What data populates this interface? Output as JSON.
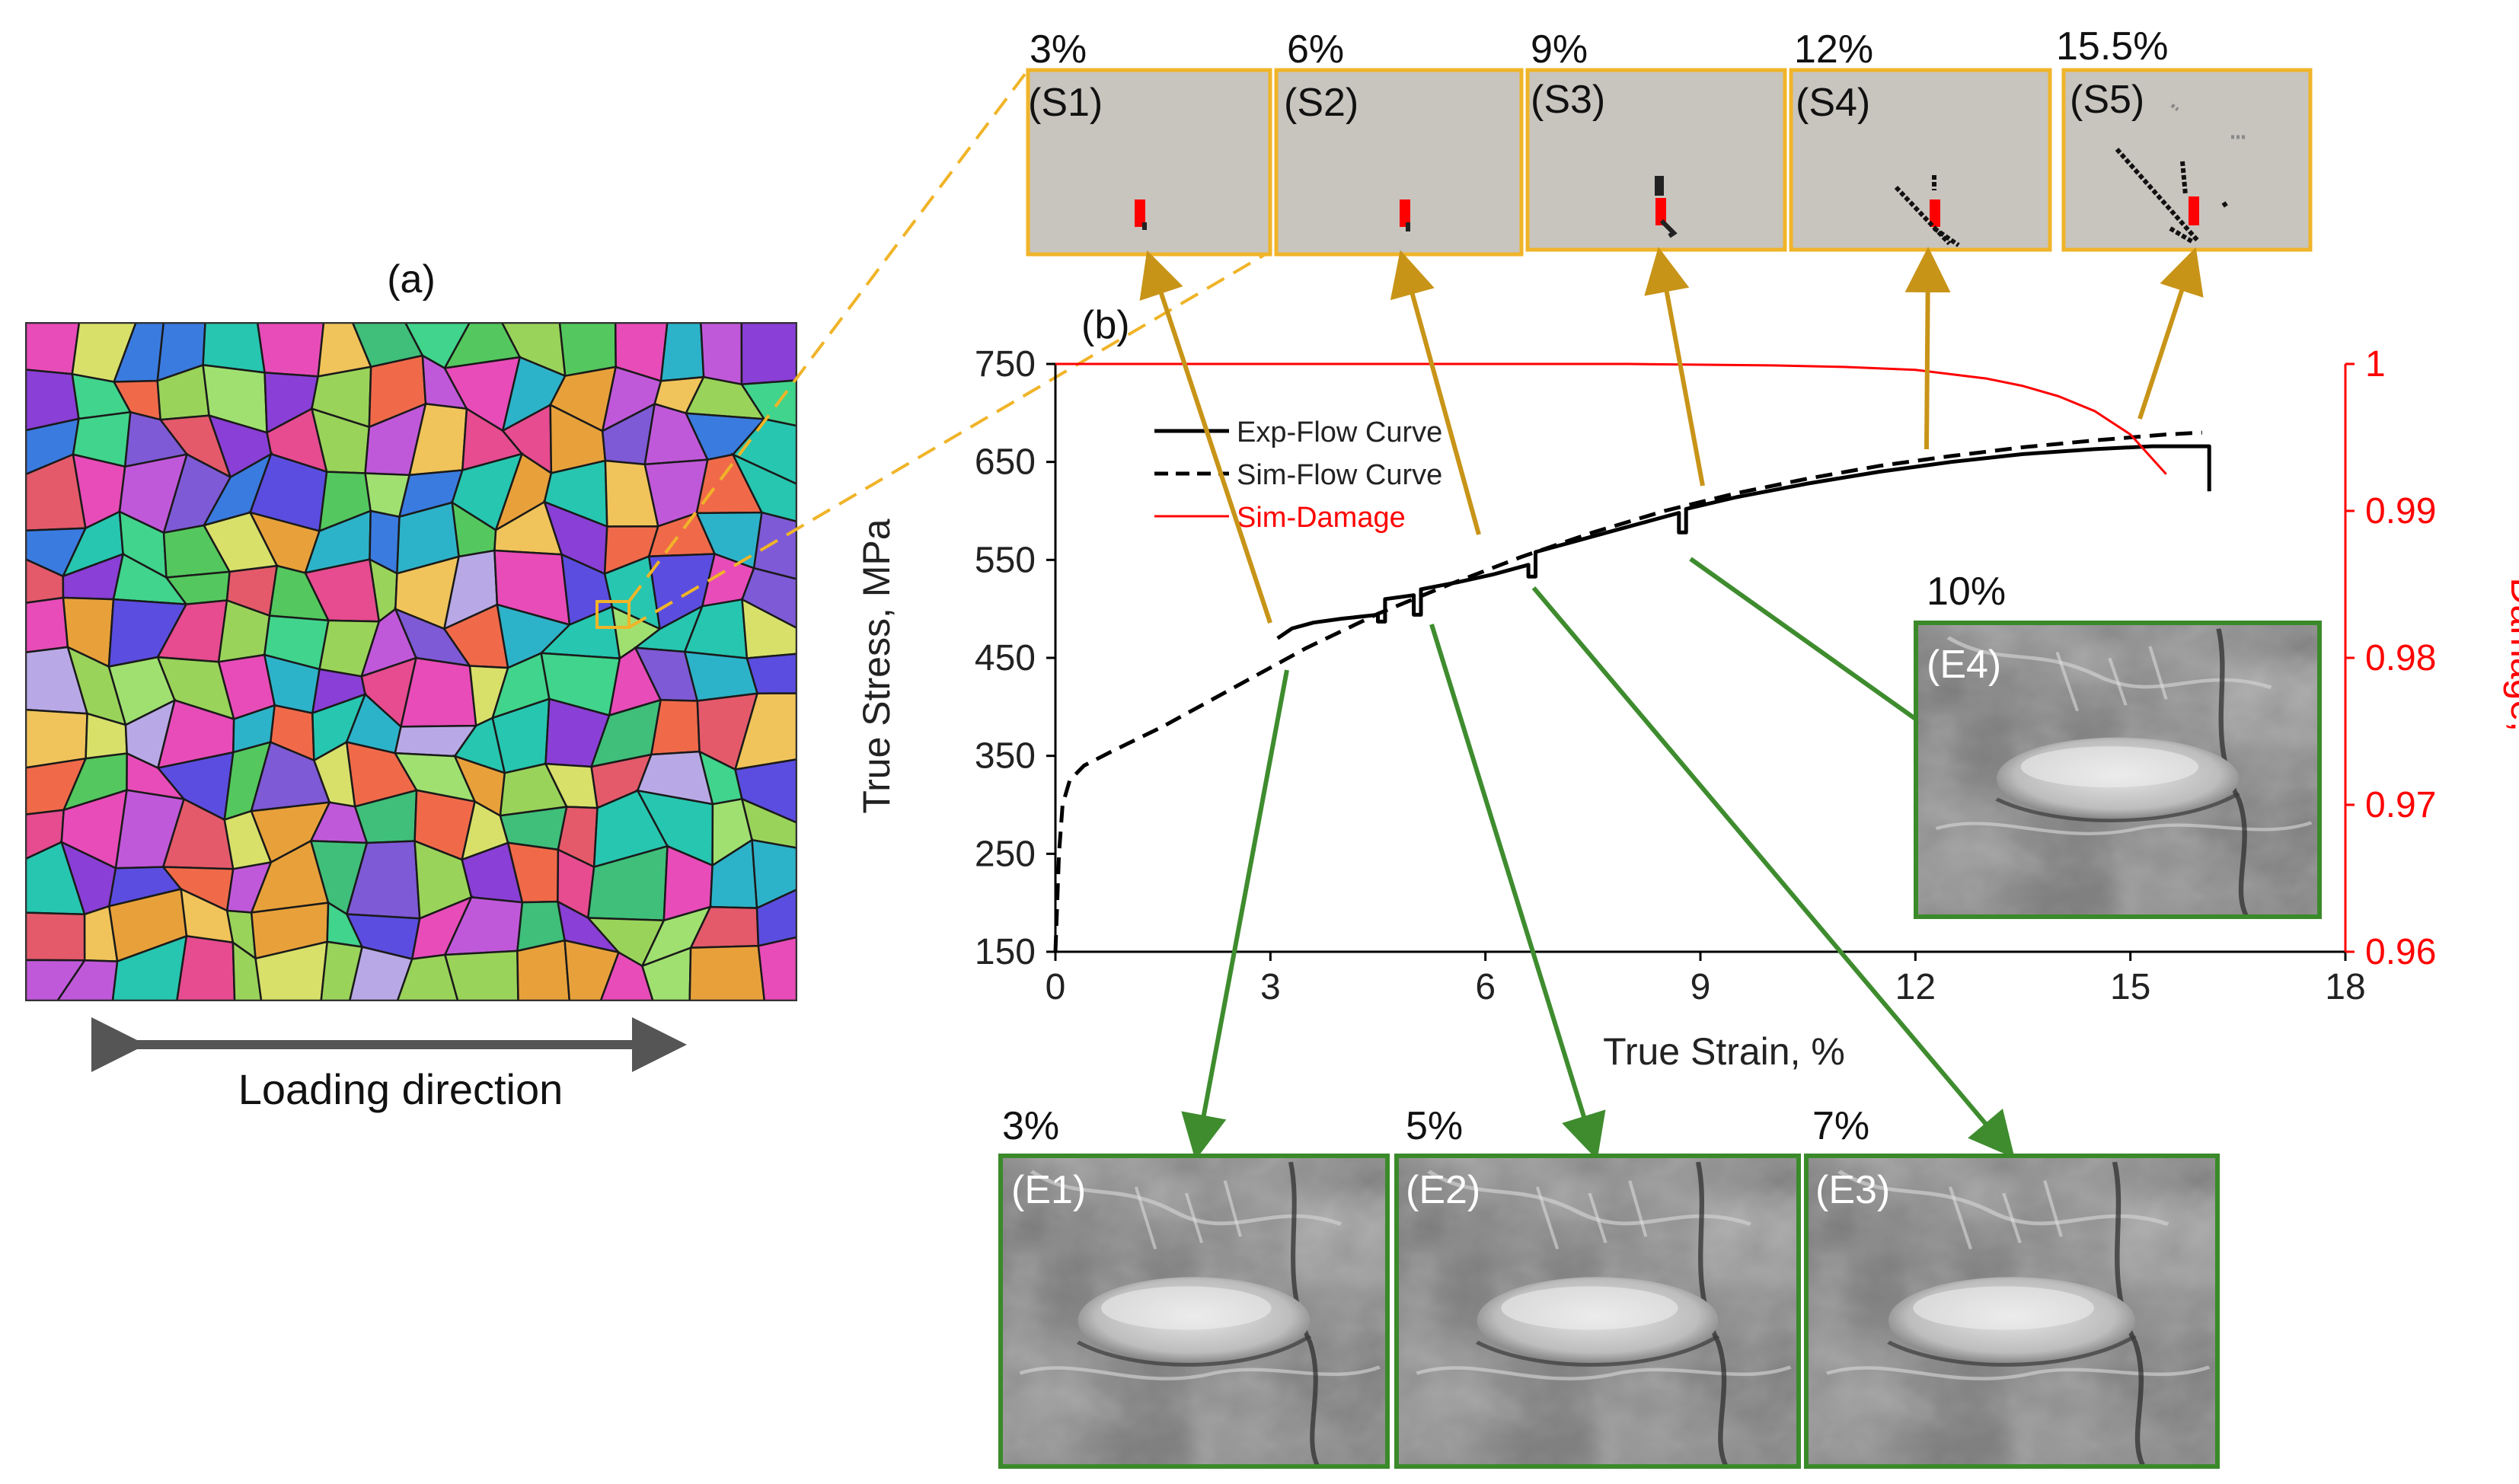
{
  "panel_a": {
    "label": "(a)",
    "caption": "Loading direction"
  },
  "panel_b": {
    "label": "(b)"
  },
  "sim_panels": [
    {
      "strain": "3%",
      "label": "(S1)"
    },
    {
      "strain": "6%",
      "label": "(S2)"
    },
    {
      "strain": "9%",
      "label": "(S3)"
    },
    {
      "strain": "12%",
      "label": "(S4)"
    },
    {
      "strain": "15.5%",
      "label": "(S5)"
    }
  ],
  "exp_panels": [
    {
      "strain": "3%",
      "label": "(E1)"
    },
    {
      "strain": "5%",
      "label": "(E2)"
    },
    {
      "strain": "7%",
      "label": "(E3)"
    },
    {
      "strain": "10%",
      "label": "(E4)"
    }
  ],
  "chart_data": {
    "type": "line",
    "xlabel": "True Strain, %",
    "ylabel": "True Stress, MPa",
    "y2label": "Damage, -",
    "xlim": [
      0,
      18
    ],
    "ylim": [
      150,
      750
    ],
    "y2lim": [
      0.96,
      1
    ],
    "xticks": [
      "0",
      "3",
      "6",
      "9",
      "12",
      "15",
      "18"
    ],
    "yticks": [
      "150",
      "250",
      "350",
      "450",
      "550",
      "650",
      "750"
    ],
    "y2ticks": [
      "0.96",
      "0.97",
      "0.98",
      "0.99",
      "1"
    ],
    "grid": false,
    "legend_position": "top-left",
    "series": [
      {
        "name": "Exp-Flow Curve",
        "axis": "left",
        "style": "solid",
        "color": "#000000",
        "x": [
          3.1,
          3.3,
          3.6,
          4.0,
          4.5,
          4.5,
          4.6,
          4.6,
          5.0,
          5.0,
          5.1,
          5.1,
          5.6,
          6.1,
          6.6,
          6.6,
          6.7,
          6.7,
          7.2,
          7.8,
          8.3,
          8.7,
          8.7,
          8.8,
          8.8,
          9.5,
          10.5,
          11.5,
          12.5,
          13.5,
          14.5,
          15.3,
          16.1,
          16.1
        ],
        "y": [
          470,
          480,
          486,
          490,
          494,
          487,
          487,
          510,
          514,
          494,
          494,
          520,
          527,
          535,
          545,
          533,
          533,
          558,
          568,
          580,
          590,
          598,
          578,
          578,
          602,
          614,
          628,
          640,
          650,
          658,
          663,
          666,
          666,
          620
        ]
      },
      {
        "name": "Sim-Flow Curve",
        "axis": "left",
        "style": "dashed",
        "color": "#000000",
        "x": [
          0,
          0.05,
          0.1,
          0.2,
          0.4,
          0.8,
          1.5,
          2.5,
          3.5,
          4.5,
          5.5,
          6.5,
          7.5,
          8.5,
          9.5,
          10.5,
          11.5,
          12.5,
          13.5,
          14.5,
          15.5,
          16.0
        ],
        "y": [
          150,
          250,
          300,
          325,
          340,
          355,
          380,
          420,
          460,
          495,
          525,
          553,
          578,
          600,
          618,
          633,
          646,
          656,
          665,
          672,
          678,
          680
        ]
      },
      {
        "name": "Sim-Damage",
        "axis": "right",
        "style": "solid",
        "color": "#ff0000",
        "x": [
          0,
          2,
          4,
          6,
          8,
          10,
          11,
          12,
          12.5,
          13,
          13.5,
          14,
          14.5,
          15,
          15.5
        ],
        "y": [
          1.0,
          1.0,
          1.0,
          1.0,
          1.0,
          0.9999,
          0.9998,
          0.9996,
          0.9993,
          0.999,
          0.9985,
          0.9978,
          0.9968,
          0.9952,
          0.9925
        ]
      }
    ]
  },
  "colors": {
    "sim_frame": "#f0b428",
    "sim_arrow": "#c89418",
    "exp_frame": "#3a8a2a",
    "exp_arrow": "#3e8c2e",
    "damage": "#ff0000",
    "sim_background": "#c8c4be"
  }
}
